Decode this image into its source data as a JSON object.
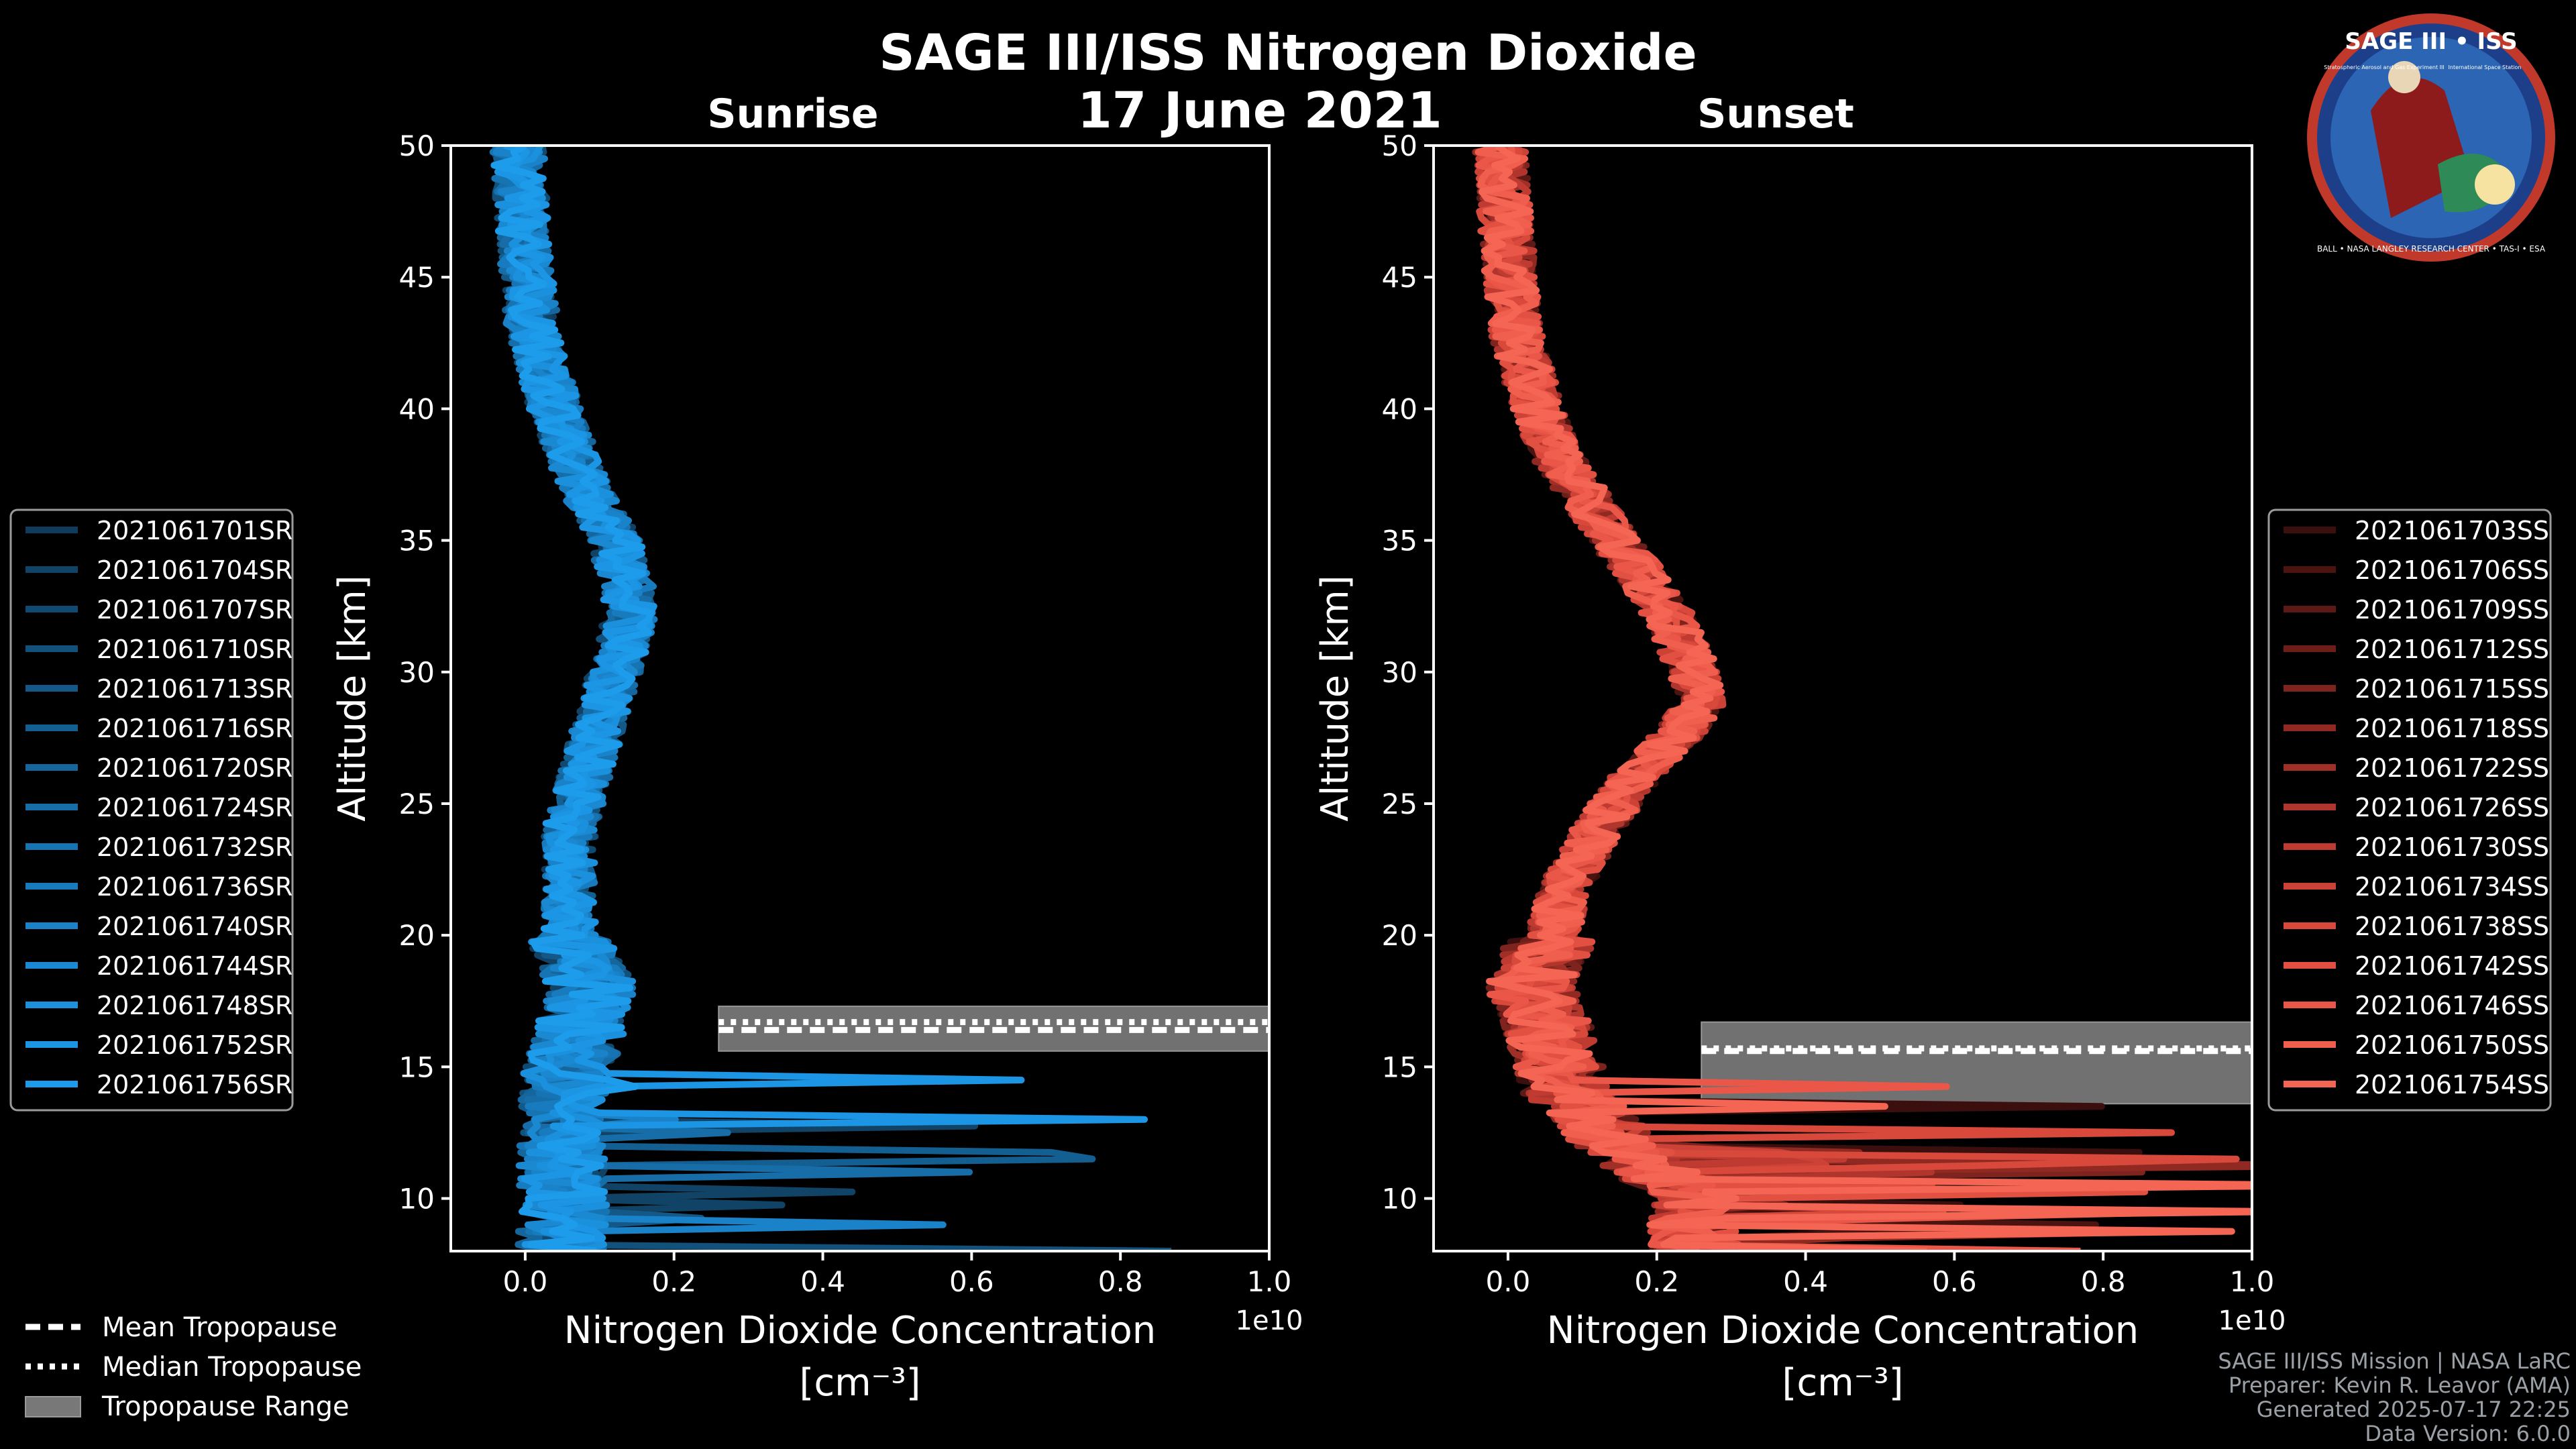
{
  "title": "SAGE III/ISS Nitrogen Dioxide",
  "date": "17 June 2021",
  "logo": {
    "top_text": "SAGE III • ISS",
    "sub_left": "Stratospheric Aerosol and Gas Experiment III",
    "sub_right": "International Space Station",
    "ring_text": "BALL • NASA LANGLEY RESEARCH CENTER • TAS-I • ESA"
  },
  "info_lines": [
    "SAGE III/ISS Mission | NASA LaRC",
    "Preparer: Kevin R. Leavor (AMA)",
    "Generated 2025-07-17 22:25",
    "Data Version: 6.0.0"
  ],
  "bottom_legend": [
    {
      "label": "Mean Tropopause",
      "style": "dashed"
    },
    {
      "label": "Median Tropopause",
      "style": "dotted"
    },
    {
      "label": "Tropopause Range",
      "style": "patch"
    }
  ],
  "chart_data": [
    {
      "type": "line",
      "subtitle": "Sunrise",
      "xlabel": "Nitrogen Dioxide Concentration",
      "xunit": "[cm⁻³]",
      "xscale_label": "1e10",
      "ylabel": "Altitude [km]",
      "xlim": [
        -0.1,
        1.0
      ],
      "ylim": [
        8,
        50
      ],
      "xticks": [
        "0.0",
        "0.2",
        "0.4",
        "0.6",
        "0.8",
        "1.0"
      ],
      "yticks": [
        "10",
        "15",
        "20",
        "25",
        "30",
        "35",
        "40",
        "45",
        "50"
      ],
      "tropopause": {
        "mean": 16.4,
        "median": 16.7,
        "min": 15.6,
        "max": 17.3
      },
      "profile_shape": {
        "altitude": [
          8,
          10,
          12,
          14,
          16,
          18,
          20,
          22,
          24,
          26,
          28,
          30,
          32,
          33,
          35,
          37,
          40,
          43,
          46,
          50
        ],
        "no2": [
          0.05,
          0.05,
          0.05,
          0.05,
          0.07,
          0.09,
          0.06,
          0.06,
          0.06,
          0.08,
          0.1,
          0.12,
          0.14,
          0.14,
          0.12,
          0.08,
          0.04,
          0.01,
          0.0,
          -0.01
        ]
      },
      "series": [
        {
          "name": "2021061701SR",
          "color": "#0f3c5c"
        },
        {
          "name": "2021061704SR",
          "color": "#104366"
        },
        {
          "name": "2021061707SR",
          "color": "#114a71"
        },
        {
          "name": "2021061710SR",
          "color": "#12517c"
        },
        {
          "name": "2021061713SR",
          "color": "#135887"
        },
        {
          "name": "2021061716SR",
          "color": "#145f92"
        },
        {
          "name": "2021061720SR",
          "color": "#15669d"
        },
        {
          "name": "2021061724SR",
          "color": "#166da8"
        },
        {
          "name": "2021061732SR",
          "color": "#1774b3"
        },
        {
          "name": "2021061736SR",
          "color": "#187bbe"
        },
        {
          "name": "2021061740SR",
          "color": "#1982c8"
        },
        {
          "name": "2021061744SR",
          "color": "#1a89d2"
        },
        {
          "name": "2021061748SR",
          "color": "#1b90dc"
        },
        {
          "name": "2021061752SR",
          "color": "#1c96e4"
        },
        {
          "name": "2021061756SR",
          "color": "#1d9cec"
        }
      ]
    },
    {
      "type": "line",
      "subtitle": "Sunset",
      "xlabel": "Nitrogen Dioxide Concentration",
      "xunit": "[cm⁻³]",
      "xscale_label": "1e10",
      "ylabel": "Altitude [km]",
      "xlim": [
        -0.1,
        1.0
      ],
      "ylim": [
        8,
        50
      ],
      "xticks": [
        "0.0",
        "0.2",
        "0.4",
        "0.6",
        "0.8",
        "1.0"
      ],
      "yticks": [
        "10",
        "15",
        "20",
        "25",
        "30",
        "35",
        "40",
        "45",
        "50"
      ],
      "tropopause": {
        "mean": 15.6,
        "median": 15.7,
        "min": 13.6,
        "max": 16.7
      },
      "profile_shape": {
        "altitude": [
          8,
          10,
          12,
          14,
          16,
          18,
          20,
          22,
          24,
          26,
          28,
          29,
          30,
          32,
          34,
          36,
          38,
          40,
          43,
          46,
          50
        ],
        "no2": [
          0.25,
          0.25,
          0.15,
          0.08,
          0.06,
          0.03,
          0.06,
          0.08,
          0.12,
          0.17,
          0.24,
          0.26,
          0.25,
          0.22,
          0.17,
          0.12,
          0.07,
          0.04,
          0.01,
          0.0,
          -0.01
        ]
      },
      "series": [
        {
          "name": "2021061703SS",
          "color": "#3a0f0d"
        },
        {
          "name": "2021061706SS",
          "color": "#4b1411"
        },
        {
          "name": "2021061709SS",
          "color": "#5c1915"
        },
        {
          "name": "2021061712SS",
          "color": "#6d1e19"
        },
        {
          "name": "2021061715SS",
          "color": "#7e231d"
        },
        {
          "name": "2021061718SS",
          "color": "#8f2922"
        },
        {
          "name": "2021061722SS",
          "color": "#a02f27"
        },
        {
          "name": "2021061726SS",
          "color": "#b0352c"
        },
        {
          "name": "2021061730SS",
          "color": "#bf3b31"
        },
        {
          "name": "2021061734SS",
          "color": "#cc4236"
        },
        {
          "name": "2021061738SS",
          "color": "#d8493c"
        },
        {
          "name": "2021061742SS",
          "color": "#e25042"
        },
        {
          "name": "2021061746SS",
          "color": "#ea5748"
        },
        {
          "name": "2021061750SS",
          "color": "#f05e4e"
        },
        {
          "name": "2021061754SS",
          "color": "#f56554"
        }
      ]
    }
  ]
}
